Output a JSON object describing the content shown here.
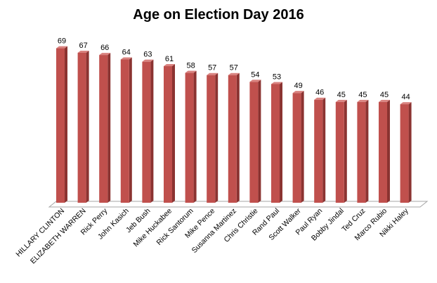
{
  "chart_data": {
    "type": "bar",
    "title": "Age on Election Day 2016",
    "xlabel": "",
    "ylabel": "",
    "ylim": [
      0,
      70
    ],
    "grid": false,
    "legend": "none",
    "bar_color": "#c0504d",
    "categories": [
      "HILLARY CLINTON",
      "ELIZABETH WARREN",
      "Rick Perry",
      "John Kasich",
      "Jeb Bush",
      "Mike Huckabee",
      "Rick Santorum",
      "Mike Pence",
      "Susanna Martinez",
      "Chris Christie",
      "Rand Paul",
      "Scott Walker",
      "Paul Ryan",
      "Bobby Jindal",
      "Ted Cruz",
      "Marco Rubio",
      "Nikki Haley"
    ],
    "values": [
      69,
      67,
      66,
      64,
      63,
      61,
      58,
      57,
      57,
      54,
      53,
      49,
      46,
      45,
      45,
      45,
      44
    ]
  }
}
